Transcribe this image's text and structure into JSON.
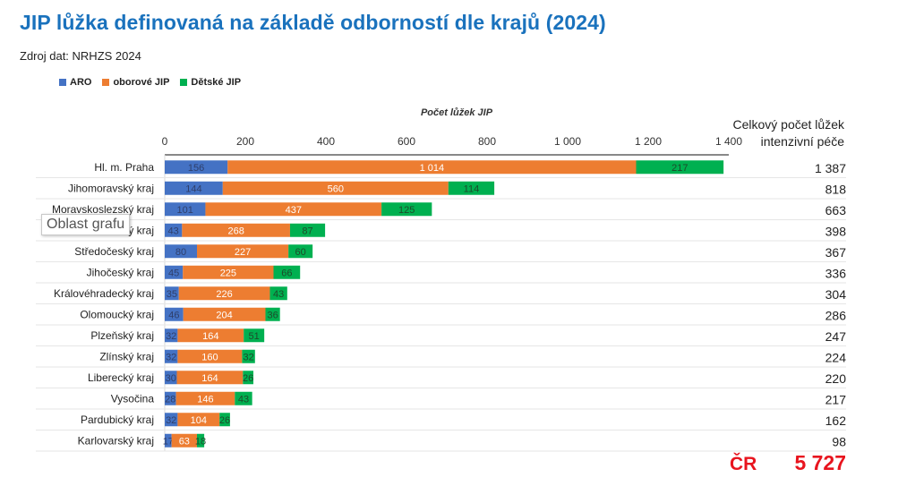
{
  "header": {
    "title": "JIP lůžka definovaná na základě odborností dle krajů (2024)",
    "source": "Zdroj dat: NRHZS 2024"
  },
  "tooltip": "Oblast grafu",
  "totals_column": {
    "header_line1": "Celkový počet lůžek",
    "header_line2": "intenzivní péče"
  },
  "country_total": {
    "label": "ČR",
    "value": "5 727"
  },
  "chart_data": {
    "type": "bar",
    "orientation": "horizontal",
    "stacked": true,
    "title": "JIP lůžka definovaná na základě odborností dle krajů (2024)",
    "xlabel": "Počet lůžek JIP",
    "ylabel": "",
    "xlim": [
      0,
      1400
    ],
    "x_ticks": [
      0,
      200,
      400,
      600,
      800,
      1000,
      1200,
      1400
    ],
    "x_tick_labels": [
      "0",
      "200",
      "400",
      "600",
      "800",
      "1 000",
      "1 200",
      "1 400"
    ],
    "x_axis_position": "top",
    "grid": false,
    "legend_position": "top-left",
    "categories": [
      "Hl. m. Praha",
      "Jihomoravský kraj",
      "Moravskoslezský kraj",
      "Ústecký kraj",
      "Středočeský kraj",
      "Jihočeský kraj",
      "Královéhradecký kraj",
      "Olomoucký kraj",
      "Plzeňský kraj",
      "Zlínský kraj",
      "Liberecký kraj",
      "Vysočina",
      "Pardubický kraj",
      "Karlovarský kraj"
    ],
    "series": [
      {
        "name": "ARO",
        "color": "#4472c4",
        "label_color": "#2f3f6b",
        "values": [
          156,
          144,
          101,
          43,
          80,
          45,
          35,
          46,
          32,
          32,
          30,
          28,
          32,
          17
        ]
      },
      {
        "name": "oborové JIP",
        "color": "#ed7d31",
        "label_color": "#ffffff",
        "values": [
          1014,
          560,
          437,
          268,
          227,
          225,
          226,
          204,
          164,
          160,
          164,
          146,
          104,
          63
        ]
      },
      {
        "name": "Dětské JIP",
        "color": "#00b050",
        "label_color": "#1d4a2a",
        "values": [
          217,
          114,
          125,
          87,
          60,
          66,
          43,
          36,
          51,
          32,
          26,
          43,
          26,
          18
        ]
      }
    ],
    "data_labels": [
      [
        "156",
        "1 014",
        "217"
      ],
      [
        "144",
        "560",
        "114"
      ],
      [
        "101",
        "437",
        "125"
      ],
      [
        "43",
        "268",
        "87"
      ],
      [
        "80",
        "227",
        "60"
      ],
      [
        "45",
        "225",
        "66"
      ],
      [
        "35",
        "226",
        "43"
      ],
      [
        "46",
        "204",
        "36"
      ],
      [
        "32",
        "164",
        "51"
      ],
      [
        "32",
        "160",
        "32"
      ],
      [
        "30",
        "164",
        "26"
      ],
      [
        "28",
        "146",
        "43"
      ],
      [
        "32",
        "104",
        "26"
      ],
      [
        "17",
        "63",
        "18"
      ]
    ],
    "totals": [
      "1 387",
      "818",
      "663",
      "398",
      "367",
      "336",
      "304",
      "286",
      "247",
      "224",
      "220",
      "217",
      "162",
      "98"
    ]
  }
}
